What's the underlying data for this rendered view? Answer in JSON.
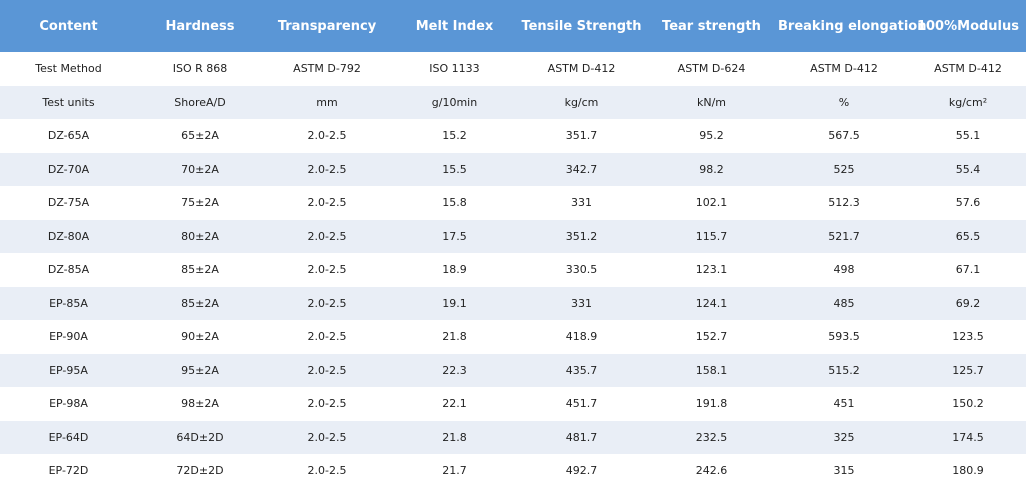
{
  "table": {
    "header": [
      "Content",
      "Hardness",
      "Transparency",
      "Melt Index",
      "Tensile Strength",
      "Tear strength",
      "Breaking elongation",
      "100%Modulus"
    ],
    "rows": [
      [
        "Test Method",
        "ISO R 868",
        "ASTM D-792",
        "ISO 1133",
        "ASTM D-412",
        "ASTM D-624",
        "ASTM D-412",
        "ASTM D-412"
      ],
      [
        "Test units",
        "ShoreA/D",
        "mm",
        "g/10min",
        "kg/cm",
        "kN/m",
        "%",
        "kg/cm²"
      ],
      [
        "DZ-65A",
        "65±2A",
        "2.0-2.5",
        "15.2",
        "351.7",
        "95.2",
        "567.5",
        "55.1"
      ],
      [
        "DZ-70A",
        "70±2A",
        "2.0-2.5",
        "15.5",
        "342.7",
        "98.2",
        "525",
        "55.4"
      ],
      [
        "DZ-75A",
        "75±2A",
        "2.0-2.5",
        "15.8",
        "331",
        "102.1",
        "512.3",
        "57.6"
      ],
      [
        "DZ-80A",
        "80±2A",
        "2.0-2.5",
        "17.5",
        "351.2",
        "115.7",
        "521.7",
        "65.5"
      ],
      [
        "DZ-85A",
        "85±2A",
        "2.0-2.5",
        "18.9",
        "330.5",
        "123.1",
        "498",
        "67.1"
      ],
      [
        "EP-85A",
        "85±2A",
        "2.0-2.5",
        "19.1",
        "331",
        "124.1",
        "485",
        "69.2"
      ],
      [
        "EP-90A",
        "90±2A",
        "2.0-2.5",
        "21.8",
        "418.9",
        "152.7",
        "593.5",
        "123.5"
      ],
      [
        "EP-95A",
        "95±2A",
        "2.0-2.5",
        "22.3",
        "435.7",
        "158.1",
        "515.2",
        "125.7"
      ],
      [
        "EP-98A",
        "98±2A",
        "2.0-2.5",
        "22.1",
        "451.7",
        "191.8",
        "451",
        "150.2"
      ],
      [
        "EP-64D",
        "64D±2D",
        "2.0-2.5",
        "21.8",
        "481.7",
        "232.5",
        "325",
        "174.5"
      ],
      [
        "EP-72D",
        "72D±2D",
        "2.0-2.5",
        "21.7",
        "492.7",
        "242.6",
        "315",
        "180.9"
      ]
    ]
  }
}
